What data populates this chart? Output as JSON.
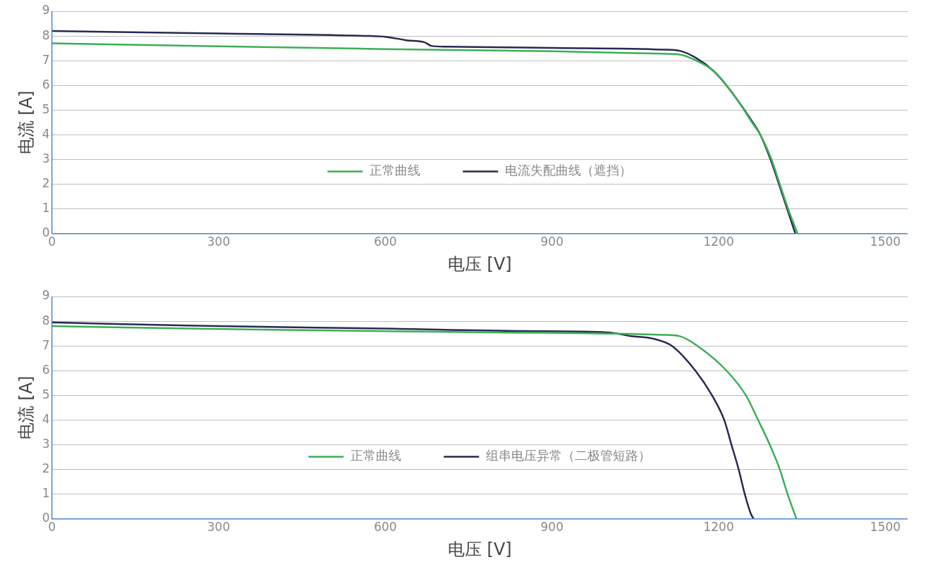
{
  "chart_data": [
    {
      "type": "line",
      "xlabel": "电压 [V]",
      "ylabel": "电流 [A]",
      "xlim": [
        0,
        1540
      ],
      "xticks": [
        0,
        300,
        600,
        900,
        1200,
        1500
      ],
      "ylim": [
        0,
        9
      ],
      "yticks": [
        0,
        1,
        2,
        3,
        4,
        5,
        6,
        7,
        8,
        9
      ],
      "grid": "y",
      "legend": "center",
      "marker": "none",
      "line_style": "solid",
      "series": [
        {
          "name": "正常曲线",
          "color": "#3cae54",
          "x": [
            0,
            300,
            600,
            900,
            1100,
            1130,
            1160,
            1190,
            1214,
            1240,
            1260,
            1275,
            1295,
            1310,
            1325,
            1342
          ],
          "values": [
            7.7,
            7.58,
            7.47,
            7.38,
            7.28,
            7.25,
            7.0,
            6.6,
            6.0,
            5.2,
            4.5,
            4.0,
            3.0,
            2.0,
            1.0,
            0
          ]
        },
        {
          "name": "电流失配曲线（遮挡）",
          "color": "#262a4f",
          "x": [
            0,
            300,
            571,
            600,
            640,
            670,
            683,
            710,
            900,
            1100,
            1130,
            1160,
            1190,
            1214,
            1260,
            1275,
            1295,
            1310,
            1338
          ],
          "values": [
            8.2,
            8.1,
            8.0,
            7.97,
            7.82,
            7.75,
            7.6,
            7.57,
            7.52,
            7.45,
            7.4,
            7.1,
            6.6,
            6.0,
            4.55,
            4.0,
            2.9,
            1.9,
            0
          ]
        }
      ]
    },
    {
      "type": "line",
      "xlabel": "电压 [V]",
      "ylabel": "电流 [A]",
      "xlim": [
        0,
        1540
      ],
      "xticks": [
        0,
        300,
        600,
        900,
        1200,
        1500
      ],
      "ylim": [
        0,
        9
      ],
      "yticks": [
        0,
        1,
        2,
        3,
        4,
        5,
        6,
        7,
        8,
        9
      ],
      "grid": "y",
      "legend": "center",
      "marker": "none",
      "line_style": "solid",
      "series": [
        {
          "name": "正常曲线",
          "color": "#3cae54",
          "x": [
            0,
            400,
            800,
            1100,
            1129,
            1162,
            1214,
            1249,
            1271,
            1292,
            1310,
            1324,
            1340
          ],
          "values": [
            7.8,
            7.65,
            7.55,
            7.45,
            7.4,
            7.0,
            6.0,
            5.0,
            4.0,
            3.0,
            2.0,
            1.0,
            0
          ]
        },
        {
          "name": "组串电压异常（二极管短路）",
          "color": "#262a4f",
          "x": [
            0,
            300,
            600,
            850,
            1000,
            1042,
            1081,
            1116,
            1158,
            1188,
            1210,
            1223,
            1236,
            1247,
            1258,
            1263
          ],
          "values": [
            7.95,
            7.8,
            7.7,
            7.6,
            7.55,
            7.4,
            7.3,
            7.0,
            6.0,
            5.0,
            4.0,
            3.0,
            2.0,
            1.0,
            0.2,
            0
          ]
        }
      ]
    }
  ]
}
